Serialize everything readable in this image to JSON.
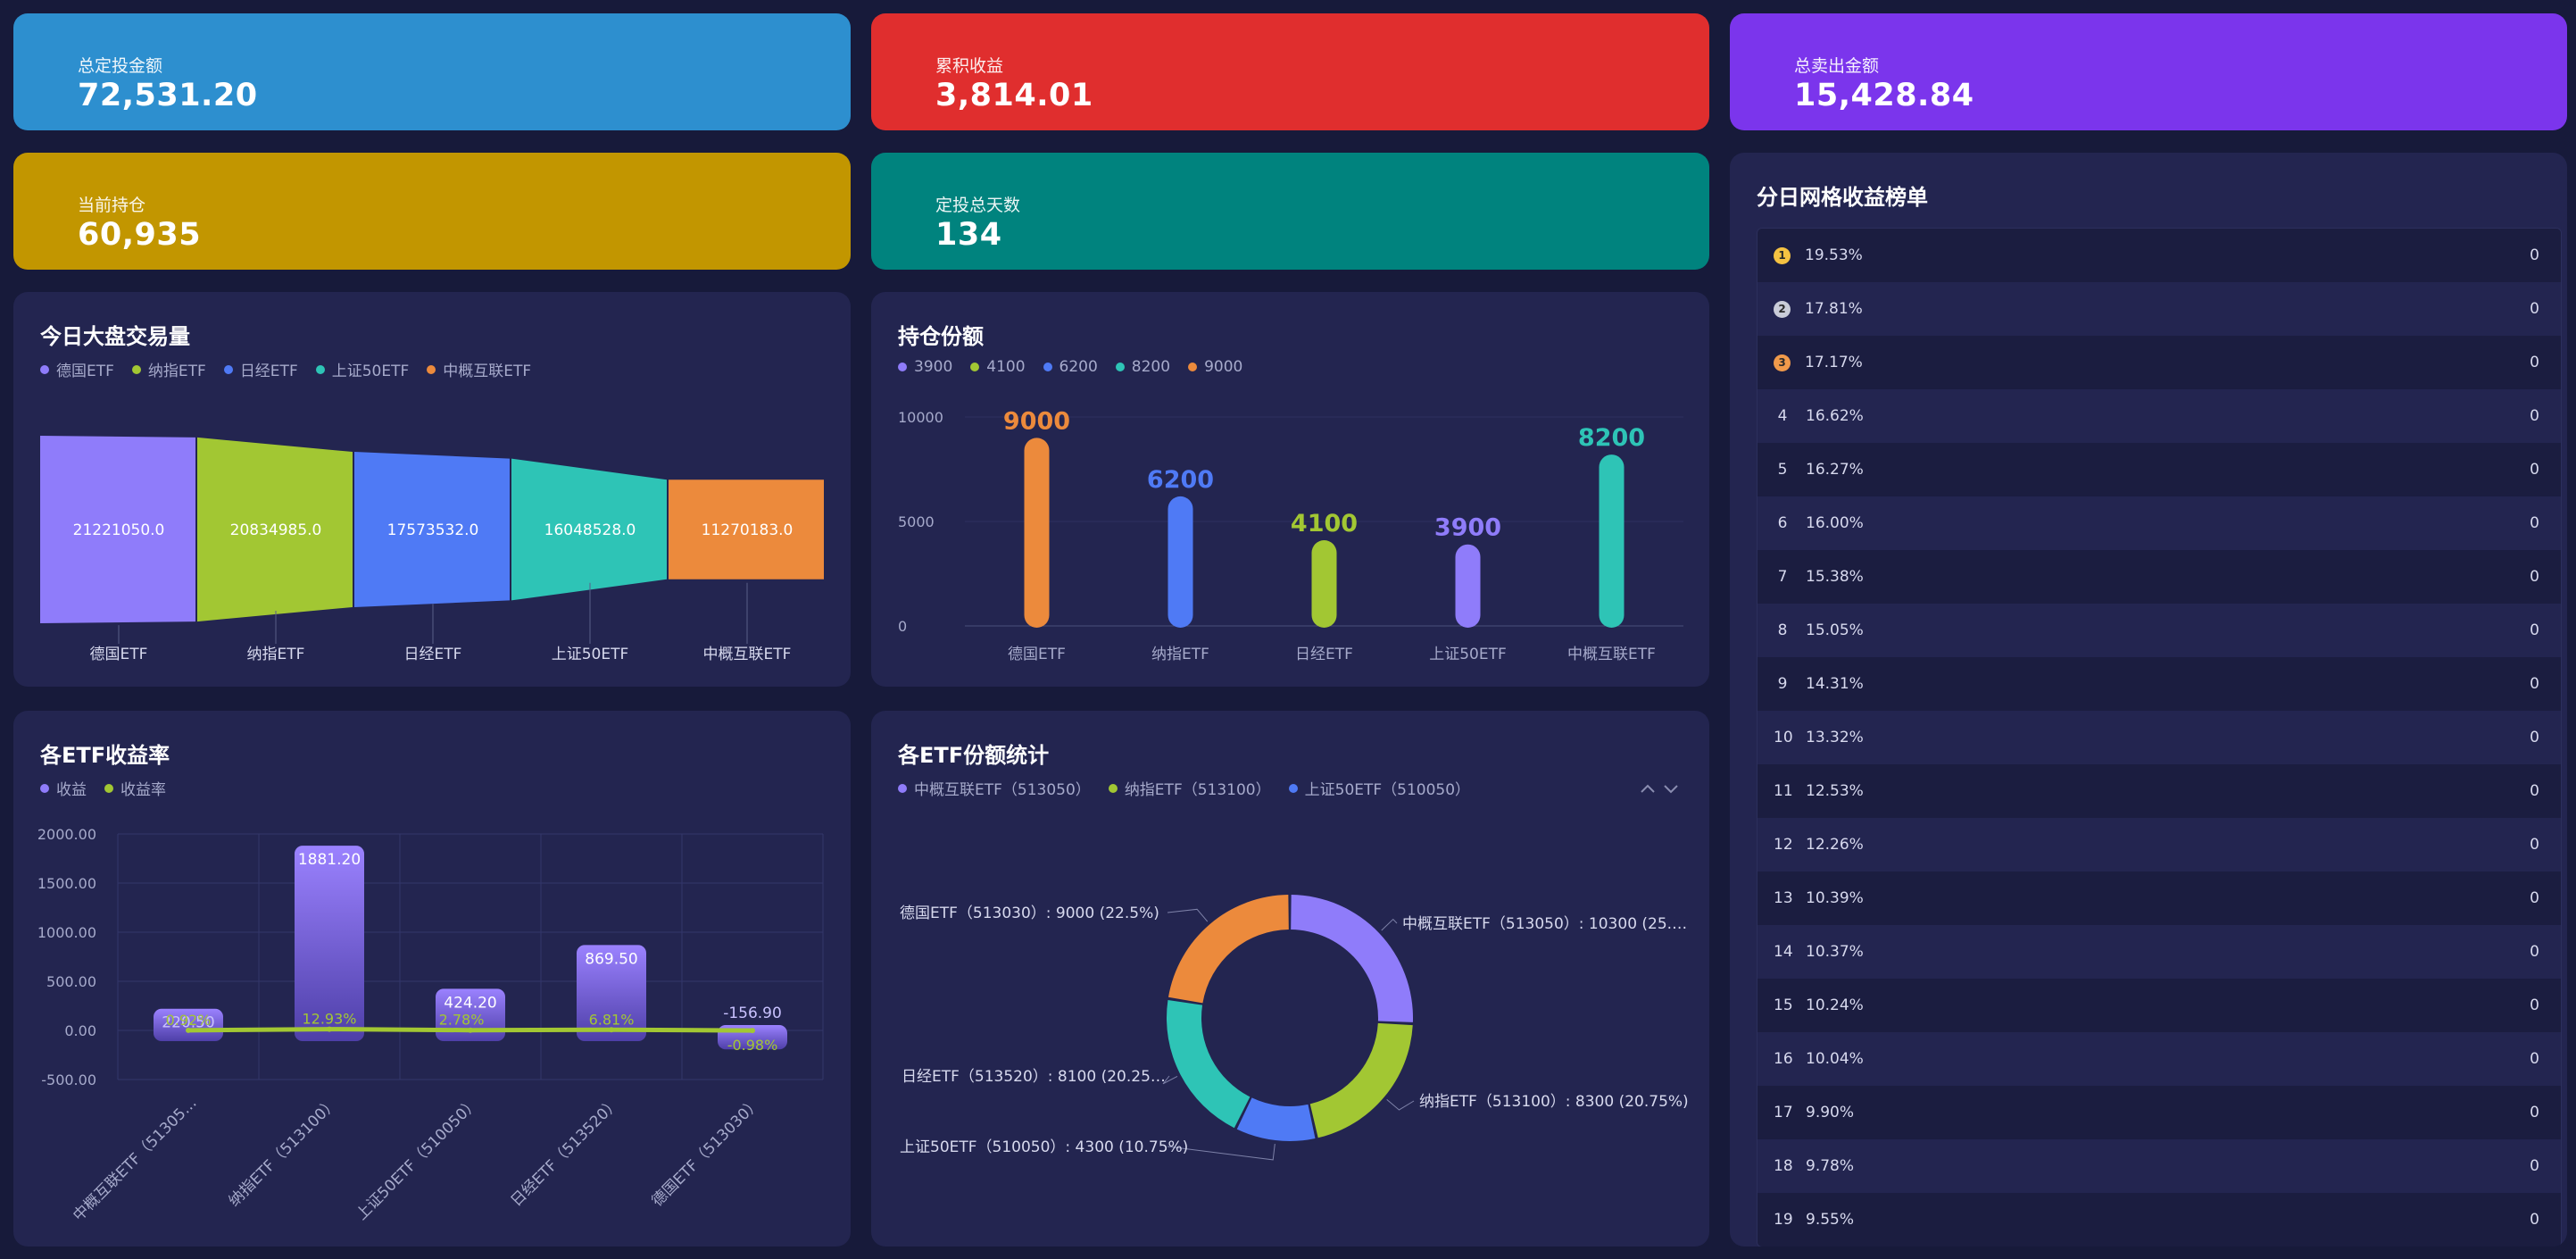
{
  "stats": [
    {
      "label": "总定投金额",
      "value": "72,531.20",
      "color": "#2d8fcf"
    },
    {
      "label": "累积收益",
      "value": "3,814.01",
      "color": "#e02e2e"
    },
    {
      "label": "总卖出金额",
      "value": "15,428.84",
      "color": "#7b35ec"
    },
    {
      "label": "当前持仓",
      "value": "60,935",
      "color": "#c29600"
    },
    {
      "label": "定投总天数",
      "value": "134",
      "color": "#00837e"
    }
  ],
  "chart_data": [
    {
      "type": "funnel",
      "title": "今日大盘交易量",
      "categories": [
        "德国ETF",
        "纳指ETF",
        "日经ETF",
        "上证50ETF",
        "中概互联ETF"
      ],
      "values": [
        21221050.0,
        20834985.0,
        17573532.0,
        16048528.0,
        11270183.0
      ],
      "value_labels": [
        "21221050.0",
        "20834985.0",
        "17573532.0",
        "16048528.0",
        "11270183.0"
      ],
      "colors": [
        "#8f7cfa",
        "#a2c733",
        "#4f7af5",
        "#2ec4b6",
        "#ec8a3c"
      ],
      "legend": [
        "德国ETF",
        "纳指ETF",
        "日经ETF",
        "上证50ETF",
        "中概互联ETF"
      ],
      "legend_position": "top-left"
    },
    {
      "type": "bar",
      "title": "持仓份额",
      "categories": [
        "德国ETF",
        "纳指ETF",
        "日经ETF",
        "上证50ETF",
        "中概互联ETF"
      ],
      "values": [
        9000,
        6200,
        4100,
        3900,
        8200
      ],
      "value_labels": [
        "9000",
        "6200",
        "4100",
        "3900",
        "8200"
      ],
      "colors": [
        "#ec8a3c",
        "#4f7af5",
        "#a2c733",
        "#8f7cfa",
        "#2ec4b6"
      ],
      "legend": [
        "3900",
        "4100",
        "6200",
        "8200",
        "9000"
      ],
      "legend_colors": [
        "#8f7cfa",
        "#a2c733",
        "#4f7af5",
        "#2ec4b6",
        "#ec8a3c"
      ],
      "yticks": [
        "10000",
        "5000",
        "0"
      ],
      "ylim": [
        0,
        10000
      ],
      "legend_position": "top-left"
    },
    {
      "type": "bar+line",
      "title": "各ETF收益率",
      "categories": [
        "中概互联ETF（51305…",
        "纳指ETF（513100）",
        "上证50ETF（510050）",
        "日经ETF（513520）",
        "德国ETF（513030）"
      ],
      "series": [
        {
          "name": "收益",
          "values": [
            220.5,
            1881.2,
            424.2,
            869.5,
            -156.9
          ],
          "labels": [
            "220.50",
            "1881.20",
            "424.20",
            "869.50",
            "-156.90"
          ],
          "color": "#8f7cfa"
        },
        {
          "name": "收益率",
          "values": [
            0.92,
            12.93,
            2.78,
            6.81,
            -0.98
          ],
          "labels": [
            "0.92%",
            "12.93%",
            "2.78%",
            "6.81%",
            "-0.98%"
          ],
          "color": "#a2c733"
        }
      ],
      "yticks": [
        "2000.00",
        "1500.00",
        "1000.00",
        "500.00",
        "0.00",
        "-500.00"
      ],
      "ylim": [
        -500,
        2000
      ],
      "grid": true,
      "legend_position": "top-left"
    },
    {
      "type": "pie",
      "title": "各ETF份额统计",
      "legend": [
        "中概互联ETF（513050）",
        "纳指ETF（513100）",
        "上证50ETF（510050）"
      ],
      "legend_colors": [
        "#8f7cfa",
        "#a2c733",
        "#4f7af5"
      ],
      "slices": [
        {
          "name": "中概互联ETF（513050）",
          "value": 10300,
          "label": "中概互联ETF（513050）: 10300 (25.…",
          "color": "#8f7cfa"
        },
        {
          "name": "纳指ETF（513100）",
          "value": 8300,
          "label": "纳指ETF（513100）: 8300 (20.75%)",
          "color": "#a2c733"
        },
        {
          "name": "上证50ETF（510050）",
          "value": 4300,
          "label": "上证50ETF（510050）: 4300 (10.75%)",
          "color": "#4f7af5"
        },
        {
          "name": "日经ETF（513520）",
          "value": 8100,
          "label": "日经ETF（513520）: 8100 (20.25…",
          "color": "#2ec4b6"
        },
        {
          "name": "德国ETF（513030）",
          "value": 9000,
          "label": "德国ETF（513030）: 9000 (22.5%)",
          "color": "#ec8a3c"
        }
      ],
      "legend_position": "top-left"
    }
  ],
  "ranking": {
    "title": "分日网格收益榜单",
    "medal_colors": [
      "#f5c242",
      "#c9ccd8",
      "#f09a4b"
    ],
    "rows": [
      {
        "rank": "1",
        "pct": "19.53%",
        "count": "0"
      },
      {
        "rank": "2",
        "pct": "17.81%",
        "count": "0"
      },
      {
        "rank": "3",
        "pct": "17.17%",
        "count": "0"
      },
      {
        "rank": "4",
        "pct": "16.62%",
        "count": "0"
      },
      {
        "rank": "5",
        "pct": "16.27%",
        "count": "0"
      },
      {
        "rank": "6",
        "pct": "16.00%",
        "count": "0"
      },
      {
        "rank": "7",
        "pct": "15.38%",
        "count": "0"
      },
      {
        "rank": "8",
        "pct": "15.05%",
        "count": "0"
      },
      {
        "rank": "9",
        "pct": "14.31%",
        "count": "0"
      },
      {
        "rank": "10",
        "pct": "13.32%",
        "count": "0"
      },
      {
        "rank": "11",
        "pct": "12.53%",
        "count": "0"
      },
      {
        "rank": "12",
        "pct": "12.26%",
        "count": "0"
      },
      {
        "rank": "13",
        "pct": "10.39%",
        "count": "0"
      },
      {
        "rank": "14",
        "pct": "10.37%",
        "count": "0"
      },
      {
        "rank": "15",
        "pct": "10.24%",
        "count": "0"
      },
      {
        "rank": "16",
        "pct": "10.04%",
        "count": "0"
      },
      {
        "rank": "17",
        "pct": "9.90%",
        "count": "0"
      },
      {
        "rank": "18",
        "pct": "9.78%",
        "count": "0"
      },
      {
        "rank": "19",
        "pct": "9.55%",
        "count": "0"
      }
    ]
  },
  "icons": {
    "pie_legend_prev": "chevron-up-icon",
    "pie_legend_next": "chevron-down-icon",
    "pie_legend_arrows": "⌃ ⌄"
  }
}
